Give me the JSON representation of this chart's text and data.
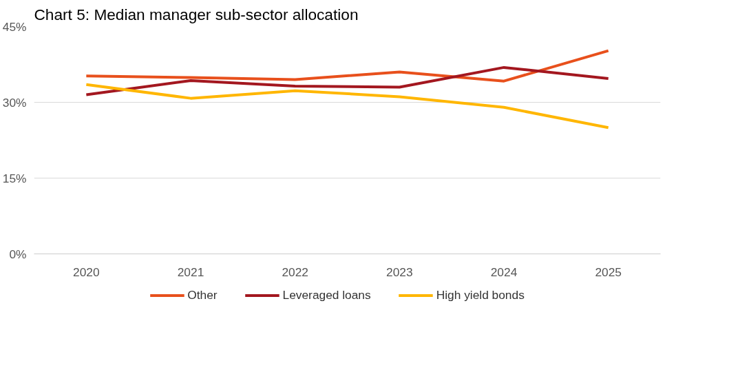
{
  "chart_data": {
    "type": "line",
    "title": "Chart 5: Median manager sub-sector allocation",
    "categories": [
      "2020",
      "2021",
      "2022",
      "2023",
      "2024",
      "2025"
    ],
    "series": [
      {
        "name": "Other",
        "color": "#e8501c",
        "values": [
          35.2,
          34.9,
          34.5,
          36.0,
          34.2,
          40.2
        ]
      },
      {
        "name": "Leveraged loans",
        "color": "#a3171f",
        "values": [
          31.5,
          34.3,
          33.2,
          33.0,
          36.9,
          34.7
        ]
      },
      {
        "name": "High yield bonds",
        "color": "#ffb600",
        "values": [
          33.5,
          30.8,
          32.3,
          31.1,
          29.0,
          25.0
        ]
      }
    ],
    "ylim": [
      0,
      45
    ],
    "yticks": [
      {
        "value": 0,
        "label": "0%"
      },
      {
        "value": 15,
        "label": "15%"
      },
      {
        "value": 30,
        "label": "30%"
      },
      {
        "value": 45,
        "label": "45%"
      }
    ],
    "grid": "y",
    "legend": "bottom",
    "marker": "none",
    "line_style": "solid"
  }
}
